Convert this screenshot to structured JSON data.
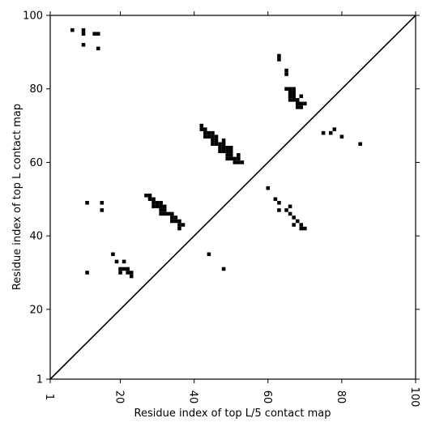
{
  "chart_data": {
    "type": "scatter",
    "marker": "square",
    "xlabel": "Residue index of top L/5 contact map",
    "ylabel": "Residue index of top L contact map",
    "xlim": [
      1,
      100
    ],
    "ylim": [
      1,
      100
    ],
    "x_ticks": [
      "1",
      "20",
      "40",
      "60",
      "80",
      "100"
    ],
    "y_ticks": [
      "1",
      "20",
      "40",
      "60",
      "80",
      "100"
    ],
    "x_tick_rotation": 90,
    "diagonal": true,
    "grid": false,
    "color": "#000000",
    "points": [
      [
        7,
        96
      ],
      [
        10,
        96
      ],
      [
        10,
        95
      ],
      [
        13,
        95
      ],
      [
        14,
        95
      ],
      [
        10,
        92
      ],
      [
        14,
        91
      ],
      [
        11,
        49
      ],
      [
        15,
        49
      ],
      [
        15,
        47
      ],
      [
        11,
        30
      ],
      [
        18,
        35
      ],
      [
        19,
        33
      ],
      [
        21,
        33
      ],
      [
        20,
        31
      ],
      [
        21,
        31
      ],
      [
        22,
        31
      ],
      [
        20,
        30
      ],
      [
        22,
        30
      ],
      [
        23,
        30
      ],
      [
        23,
        29
      ],
      [
        27,
        51
      ],
      [
        28,
        51
      ],
      [
        28,
        50
      ],
      [
        29,
        50
      ],
      [
        29,
        49
      ],
      [
        30,
        49
      ],
      [
        31,
        49
      ],
      [
        29,
        48
      ],
      [
        30,
        48
      ],
      [
        31,
        48
      ],
      [
        32,
        48
      ],
      [
        31,
        47
      ],
      [
        32,
        47
      ],
      [
        31,
        46
      ],
      [
        32,
        46
      ],
      [
        33,
        46
      ],
      [
        34,
        46
      ],
      [
        34,
        45
      ],
      [
        35,
        45
      ],
      [
        34,
        44
      ],
      [
        35,
        44
      ],
      [
        36,
        44
      ],
      [
        36,
        43
      ],
      [
        37,
        43
      ],
      [
        36,
        42
      ],
      [
        42,
        70
      ],
      [
        42,
        69
      ],
      [
        43,
        69
      ],
      [
        43,
        68
      ],
      [
        44,
        68
      ],
      [
        45,
        68
      ],
      [
        43,
        67
      ],
      [
        44,
        67
      ],
      [
        45,
        67
      ],
      [
        46,
        67
      ],
      [
        45,
        66
      ],
      [
        46,
        66
      ],
      [
        48,
        66
      ],
      [
        45,
        65
      ],
      [
        46,
        65
      ],
      [
        47,
        65
      ],
      [
        48,
        65
      ],
      [
        47,
        64
      ],
      [
        48,
        64
      ],
      [
        49,
        64
      ],
      [
        50,
        64
      ],
      [
        47,
        63
      ],
      [
        48,
        63
      ],
      [
        49,
        63
      ],
      [
        50,
        63
      ],
      [
        49,
        62
      ],
      [
        50,
        62
      ],
      [
        52,
        62
      ],
      [
        49,
        61
      ],
      [
        50,
        61
      ],
      [
        51,
        61
      ],
      [
        52,
        61
      ],
      [
        51,
        60
      ],
      [
        52,
        60
      ],
      [
        53,
        60
      ],
      [
        44,
        35
      ],
      [
        48,
        31
      ],
      [
        63,
        89
      ],
      [
        63,
        88
      ],
      [
        65,
        85
      ],
      [
        65,
        84
      ],
      [
        65,
        80
      ],
      [
        66,
        80
      ],
      [
        67,
        80
      ],
      [
        66,
        79
      ],
      [
        67,
        79
      ],
      [
        66,
        78
      ],
      [
        67,
        78
      ],
      [
        69,
        78
      ],
      [
        66,
        77
      ],
      [
        67,
        77
      ],
      [
        68,
        77
      ],
      [
        68,
        76
      ],
      [
        69,
        76
      ],
      [
        70,
        76
      ],
      [
        68,
        75
      ],
      [
        69,
        75
      ],
      [
        75,
        68
      ],
      [
        77,
        68
      ],
      [
        78,
        69
      ],
      [
        80,
        67
      ],
      [
        85,
        65
      ],
      [
        60,
        53
      ],
      [
        62,
        50
      ],
      [
        63,
        49
      ],
      [
        63,
        47
      ],
      [
        65,
        47
      ],
      [
        66,
        48
      ],
      [
        66,
        46
      ],
      [
        67,
        45
      ],
      [
        68,
        44
      ],
      [
        67,
        43
      ],
      [
        69,
        43
      ],
      [
        69,
        42
      ],
      [
        70,
        42
      ]
    ]
  }
}
